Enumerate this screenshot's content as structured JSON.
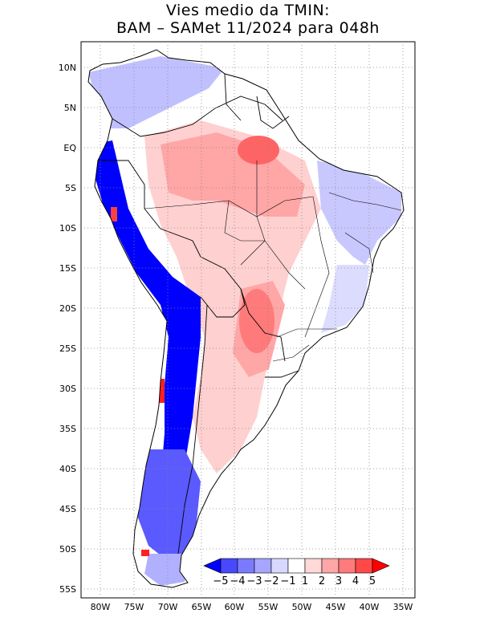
{
  "title_line1": "Vies medio da TMIN:",
  "title_line2": "BAM – SAMet 11/2024  para 048h",
  "lat_labels": [
    "10N",
    "5N",
    "EQ",
    "5S",
    "10S",
    "15S",
    "20S",
    "25S",
    "30S",
    "35S",
    "40S",
    "45S",
    "50S",
    "55S"
  ],
  "lon_labels": [
    "80W",
    "75W",
    "70W",
    "65W",
    "60W",
    "55W",
    "50W",
    "45W",
    "40W",
    "35W"
  ],
  "colorbar": {
    "labels": [
      "−5",
      "−4",
      "−3",
      "−2",
      "−1",
      "1",
      "2",
      "3",
      "4",
      "5"
    ],
    "colors": [
      "#0000ff",
      "#4848ff",
      "#7a7aff",
      "#a6a6ff",
      "#d8d8ff",
      "#ffffff",
      "#ffd8d8",
      "#ffa6a6",
      "#ff7a7a",
      "#ff4848",
      "#ff0000"
    ]
  }
}
